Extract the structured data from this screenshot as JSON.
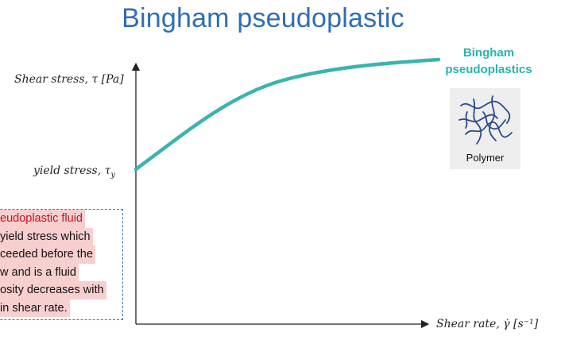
{
  "title": "Bingham pseudoplastic",
  "axes": {
    "y_label": "Shear stress, τ [Pa]",
    "x_label": "Shear rate, γ̇  [s⁻¹]",
    "yield_label": "yield stress, τ",
    "yield_subscript": "y"
  },
  "curve": {
    "label_line1": "Bingham",
    "label_line2": "pseudoplastics",
    "color": "#3bb3ae"
  },
  "polymer_icon": {
    "icon": "polymer-chain-icon",
    "label": "Polymer",
    "color": "#2a4a8a"
  },
  "note": {
    "lines": [
      "eudoplastic fluid",
      " yield stress which",
      "ceeded before the",
      "w and is a fluid",
      "osity decreases with",
      " in shear rate."
    ],
    "first_line_color": "#c0171e",
    "highlight_color": "#f8cfcf"
  }
}
